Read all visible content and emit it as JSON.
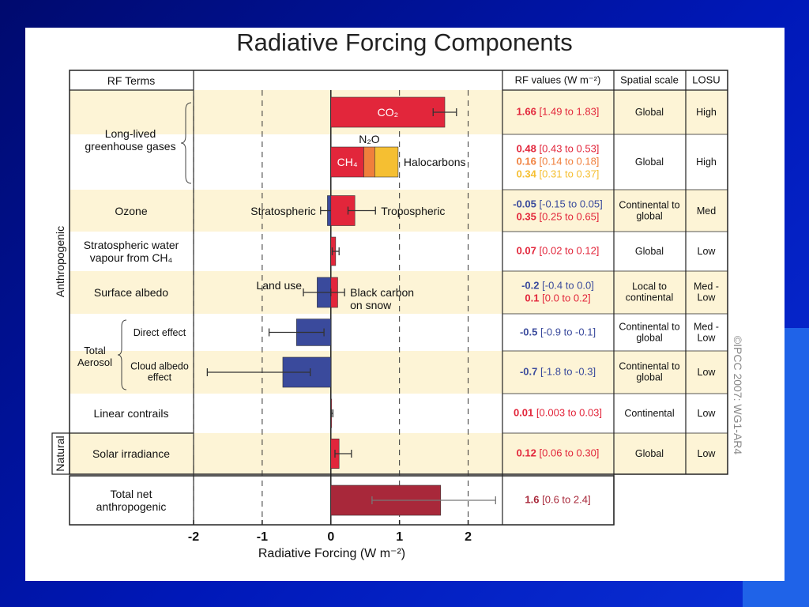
{
  "chart_data": {
    "type": "forcing-bar",
    "title": "Radiative Forcing Components",
    "xlabel": "Radiative Forcing (W m⁻²)",
    "xlim": [
      -2,
      2.5
    ],
    "xticks": [
      -2,
      -1,
      0,
      1,
      2
    ],
    "headers": {
      "terms": "RF Terms",
      "values": "RF values (W m⁻²)",
      "scale": "Spatial scale",
      "losu": "LOSU"
    },
    "groups": [
      "Anthropogenic",
      "Natural"
    ],
    "aerosol_label": "Total Aerosol",
    "copyright": "©IPCC 2007: WG1-AR4",
    "rows": [
      {
        "term": "Long-lived greenhouse gases",
        "spatial_scale": "Global",
        "losu": "High",
        "components": [
          {
            "name": "CO₂",
            "value": 1.66,
            "low": 1.49,
            "high": 1.83,
            "range_label": "[1.49 to 1.83]",
            "color": "#e2263b"
          }
        ]
      },
      {
        "spatial_scale": "Global",
        "losu": "High",
        "components": [
          {
            "name": "CH₄",
            "value": 0.48,
            "low": 0.43,
            "high": 0.53,
            "range_label": "[0.43 to 0.53]",
            "color": "#e2263b"
          },
          {
            "name": "N₂O",
            "value": 0.16,
            "low": 0.14,
            "high": 0.18,
            "range_label": "[0.14 to 0.18]",
            "color": "#f07f3c"
          },
          {
            "name": "Halocarbons",
            "value": 0.34,
            "low": 0.31,
            "high": 0.37,
            "range_label": "[0.31 to 0.37]",
            "color": "#f5bf32"
          }
        ]
      },
      {
        "term": "Ozone",
        "spatial_scale": "Continental to global",
        "losu": "Med",
        "components": [
          {
            "name": "Stratospheric",
            "value": -0.05,
            "low": -0.15,
            "high": 0.05,
            "range_label": "[-0.15 to 0.05]",
            "color": "#3a4a9c"
          },
          {
            "name": "Tropospheric",
            "value": 0.35,
            "low": 0.25,
            "high": 0.65,
            "range_label": "[0.25 to 0.65]",
            "color": "#e2263b"
          }
        ]
      },
      {
        "term": "Stratospheric water vapour from CH₄",
        "spatial_scale": "Global",
        "losu": "Low",
        "components": [
          {
            "value": 0.07,
            "low": 0.02,
            "high": 0.12,
            "range_label": "[0.02 to 0.12]",
            "color": "#e2263b"
          }
        ]
      },
      {
        "term": "Surface albedo",
        "spatial_scale": "Local to continental",
        "losu": "Med - Low",
        "components": [
          {
            "name": "Land use",
            "value": -0.2,
            "low": -0.4,
            "high": 0.0,
            "range_label": "[-0.4 to 0.0]",
            "color": "#3a4a9c"
          },
          {
            "name": "Black carbon on snow",
            "value": 0.1,
            "low": 0.0,
            "high": 0.2,
            "range_label": "[0.0 to 0.2]",
            "color": "#e2263b"
          }
        ]
      },
      {
        "term": "Direct effect",
        "spatial_scale": "Continental to global",
        "losu": "Med - Low",
        "components": [
          {
            "value": -0.5,
            "low": -0.9,
            "high": -0.1,
            "range_label": "[-0.9 to -0.1]",
            "color": "#3a4a9c"
          }
        ]
      },
      {
        "term": "Cloud albedo effect",
        "spatial_scale": "Continental to global",
        "losu": "Low",
        "components": [
          {
            "value": -0.7,
            "low": -1.8,
            "high": -0.3,
            "range_label": "[-1.8 to -0.3]",
            "color": "#3a4a9c"
          }
        ]
      },
      {
        "term": "Linear contrails",
        "spatial_scale": "Continental",
        "losu": "Low",
        "components": [
          {
            "value": 0.01,
            "low": 0.003,
            "high": 0.03,
            "range_label": "[0.003 to 0.03]",
            "color": "#e2263b"
          }
        ]
      },
      {
        "term": "Solar irradiance",
        "spatial_scale": "Global",
        "losu": "Low",
        "components": [
          {
            "value": 0.12,
            "low": 0.06,
            "high": 0.3,
            "range_label": "[0.06 to 0.30]",
            "color": "#e2263b"
          }
        ]
      },
      {
        "term": "Total net anthropogenic",
        "components": [
          {
            "value": 1.6,
            "low": 0.6,
            "high": 2.4,
            "range_label": "[0.6 to 2.4]",
            "color": "#a8283a"
          }
        ]
      }
    ]
  }
}
